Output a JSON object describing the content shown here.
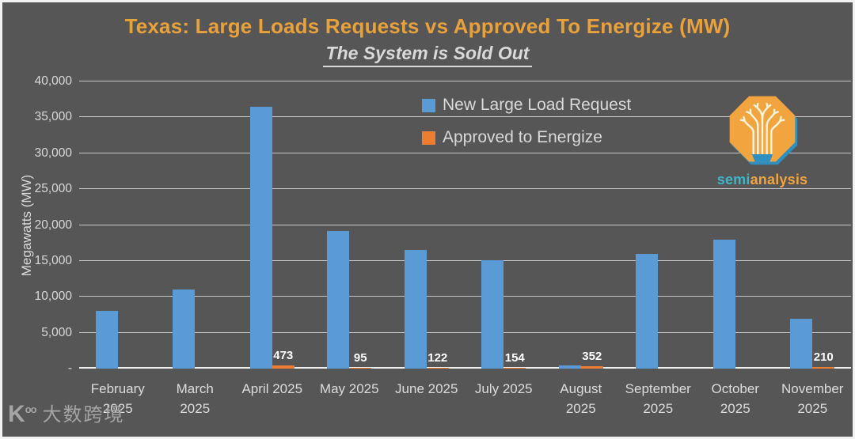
{
  "header": {
    "title": "Texas: Large Loads Requests vs Approved To Energize (MW)",
    "subtitle": "The System is Sold Out"
  },
  "chart_data": {
    "type": "bar",
    "title": "Texas: Large Loads Requests vs Approved To Energize (MW)",
    "subtitle": "The System is Sold Out",
    "ylabel": "Megawatts (MW)",
    "ylim": [
      0,
      40000
    ],
    "grid": true,
    "legend_position": "top-center-inside",
    "yticks": [
      {
        "value": 40000,
        "label": "40,000"
      },
      {
        "value": 35000,
        "label": "35,000"
      },
      {
        "value": 30000,
        "label": "30,000"
      },
      {
        "value": 25000,
        "label": "25,000"
      },
      {
        "value": 20000,
        "label": "20,000"
      },
      {
        "value": 15000,
        "label": "15,000"
      },
      {
        "value": 10000,
        "label": "10,000"
      },
      {
        "value": 5000,
        "label": "5,000"
      },
      {
        "value": 0,
        "label": "-"
      }
    ],
    "categories": [
      {
        "label": "February 2025",
        "lines": [
          "February",
          "2025"
        ]
      },
      {
        "label": "March 2025",
        "lines": [
          "March",
          "2025"
        ]
      },
      {
        "label": "April 2025",
        "lines": [
          "April 2025"
        ]
      },
      {
        "label": "May 2025",
        "lines": [
          "May 2025"
        ]
      },
      {
        "label": "June 2025",
        "lines": [
          "June 2025"
        ]
      },
      {
        "label": "July 2025",
        "lines": [
          "July 2025"
        ]
      },
      {
        "label": "August 2025",
        "lines": [
          "August",
          "2025"
        ]
      },
      {
        "label": "September 2025",
        "lines": [
          "September",
          "2025"
        ]
      },
      {
        "label": "October 2025",
        "lines": [
          "October",
          "2025"
        ]
      },
      {
        "label": "November 2025",
        "lines": [
          "November",
          "2025"
        ]
      }
    ],
    "series": [
      {
        "name": "New Large Load Request",
        "color": "#5B9BD5",
        "values": [
          8000,
          11000,
          36500,
          19200,
          16500,
          15100,
          400,
          16000,
          18000,
          6900
        ]
      },
      {
        "name": "Approved to Energize",
        "color": "#ED7D31",
        "values": [
          null,
          null,
          473,
          95,
          122,
          154,
          352,
          null,
          null,
          210
        ],
        "data_labels": [
          "",
          "",
          "473",
          "95",
          "122",
          "154",
          "352",
          "",
          "",
          "210"
        ]
      }
    ]
  },
  "legend": {
    "items": [
      {
        "label": "New Large Load Request",
        "color": "#5B9BD5"
      },
      {
        "label": "Approved to Energize",
        "color": "#ED7D31"
      }
    ]
  },
  "logo": {
    "word_semi": "semi",
    "word_analysis": "analysis"
  },
  "watermark": {
    "icon_text": "Kᵒᵒ",
    "text": "大数跨境"
  },
  "colors": {
    "background": "#565656",
    "title": "#E9A23B",
    "subtitle": "#D9D9D9",
    "axis_text": "#D9D9D9",
    "gridline": "#E4E4E4",
    "data_label": "#FFFFFF",
    "blue": "#5B9BD5",
    "orange": "#ED7D31"
  }
}
